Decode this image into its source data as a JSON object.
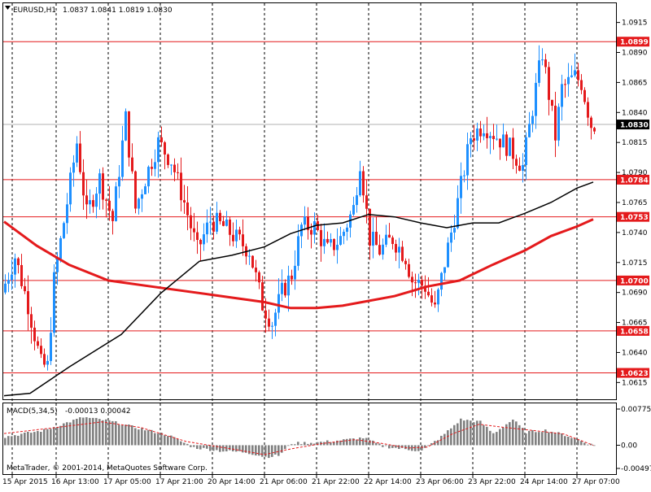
{
  "header": {
    "symbol_tf": "EURUSD,H1",
    "ohlc": "1.0837 1.0841 1.0819 1.0830"
  },
  "macd": {
    "label": "MACD(5,34,5)",
    "values": "-0.00013 0.00042",
    "ticks": [
      "0.00775",
      "0.00",
      "-0.00497"
    ],
    "tick_values": [
      0.00775,
      0.0,
      -0.00497
    ]
  },
  "copyright": "MetaTrader, © 2001-2014, MetaQuotes Software Corp.",
  "colors": {
    "bull": "#1e90ff",
    "bear": "#e41a1c",
    "level": "#e41a1c",
    "ma_fast": "#000000",
    "ma_slow": "#e41a1c",
    "macd_hist": "#808080",
    "macd_signal": "#e41a1c",
    "background": "#ffffff"
  },
  "chart_data": {
    "type": "candlestick",
    "title": "",
    "ylim": [
      1.0601,
      1.0931
    ],
    "y_ticks": [
      1.0915,
      1.089,
      1.0865,
      1.084,
      1.0815,
      1.079,
      1.0765,
      1.074,
      1.0715,
      1.069,
      1.0665,
      1.064,
      1.0615
    ],
    "y_tick_labels": [
      "1.0915",
      "1.0890",
      "1.0865",
      "1.0840",
      "1.0815",
      "1.0790",
      "1.0765",
      "1.0740",
      "1.0715",
      "1.0690",
      "1.0665",
      "1.0640",
      "1.0615"
    ],
    "x_ticks": [
      "15 Apr 2015",
      "16 Apr 13:00",
      "17 Apr 05:00",
      "17 Apr 21:00",
      "20 Apr 14:00",
      "21 Apr 06:00",
      "21 Apr 22:00",
      "22 Apr 14:00",
      "23 Apr 06:00",
      "23 Apr 22:00",
      "24 Apr 14:00",
      "27 Apr 07:00"
    ],
    "x_tick_bars": [
      0,
      16,
      32,
      48,
      64,
      80,
      96,
      112,
      128,
      144,
      160,
      176
    ],
    "current_price": 1.083,
    "levels": [
      1.0899,
      1.0784,
      1.0753,
      1.07,
      1.0658,
      1.0623
    ],
    "level_labels": [
      "1.0899",
      "1.0784",
      "1.0753",
      "1.0700",
      "1.0658",
      "1.0623"
    ],
    "current_label": "1.0830",
    "ma_fast": [
      [
        0,
        1.0604
      ],
      [
        8,
        1.0606
      ],
      [
        20,
        1.0628
      ],
      [
        36,
        1.0655
      ],
      [
        48,
        1.0689
      ],
      [
        60,
        1.0716
      ],
      [
        70,
        1.0721
      ],
      [
        80,
        1.0728
      ],
      [
        88,
        1.0739
      ],
      [
        96,
        1.0746
      ],
      [
        104,
        1.0748
      ],
      [
        112,
        1.0755
      ],
      [
        120,
        1.0753
      ],
      [
        128,
        1.0748
      ],
      [
        136,
        1.0744
      ],
      [
        144,
        1.0748
      ],
      [
        152,
        1.0748
      ],
      [
        160,
        1.0756
      ],
      [
        168,
        1.0765
      ],
      [
        176,
        1.0777
      ],
      [
        181,
        1.0782
      ]
    ],
    "ma_slow": [
      [
        0,
        1.0749
      ],
      [
        10,
        1.0729
      ],
      [
        20,
        1.0713
      ],
      [
        32,
        1.07
      ],
      [
        48,
        1.0694
      ],
      [
        64,
        1.0688
      ],
      [
        80,
        1.0682
      ],
      [
        88,
        1.0677
      ],
      [
        96,
        1.0677
      ],
      [
        104,
        1.0679
      ],
      [
        112,
        1.0683
      ],
      [
        120,
        1.0687
      ],
      [
        130,
        1.0695
      ],
      [
        140,
        1.07
      ],
      [
        150,
        1.0713
      ],
      [
        160,
        1.0725
      ],
      [
        168,
        1.0737
      ],
      [
        176,
        1.0745
      ],
      [
        181,
        1.0751
      ]
    ],
    "macd_hist_points": [
      [
        0,
        0.0018
      ],
      [
        12,
        0.0032
      ],
      [
        24,
        0.006
      ],
      [
        32,
        0.0052
      ],
      [
        40,
        0.0038
      ],
      [
        50,
        0.0022
      ],
      [
        58,
        -0.0005
      ],
      [
        66,
        -0.0012
      ],
      [
        74,
        -0.0015
      ],
      [
        80,
        -0.0025
      ],
      [
        84,
        -0.0022
      ],
      [
        88,
        0.0004
      ],
      [
        96,
        0.0006
      ],
      [
        104,
        0.0011
      ],
      [
        110,
        0.0016
      ],
      [
        116,
        -0.0002
      ],
      [
        122,
        -0.0008
      ],
      [
        128,
        -0.0012
      ],
      [
        134,
        0.0018
      ],
      [
        140,
        0.0055
      ],
      [
        146,
        0.005
      ],
      [
        150,
        0.0025
      ],
      [
        156,
        0.0055
      ],
      [
        160,
        0.0028
      ],
      [
        166,
        0.0032
      ],
      [
        172,
        0.0022
      ],
      [
        181,
        -0.0001
      ]
    ],
    "macd_signal_points": [
      [
        0,
        0.0025
      ],
      [
        16,
        0.0038
      ],
      [
        30,
        0.005
      ],
      [
        42,
        0.0038
      ],
      [
        56,
        0.0008
      ],
      [
        70,
        -0.0008
      ],
      [
        80,
        -0.002
      ],
      [
        88,
        -0.0008
      ],
      [
        98,
        0.0004
      ],
      [
        108,
        0.0012
      ],
      [
        116,
        0.0004
      ],
      [
        124,
        -0.0006
      ],
      [
        130,
        -0.0004
      ],
      [
        138,
        0.0025
      ],
      [
        146,
        0.0045
      ],
      [
        154,
        0.0038
      ],
      [
        162,
        0.0032
      ],
      [
        172,
        0.0024
      ],
      [
        181,
        0.0
      ]
    ]
  }
}
